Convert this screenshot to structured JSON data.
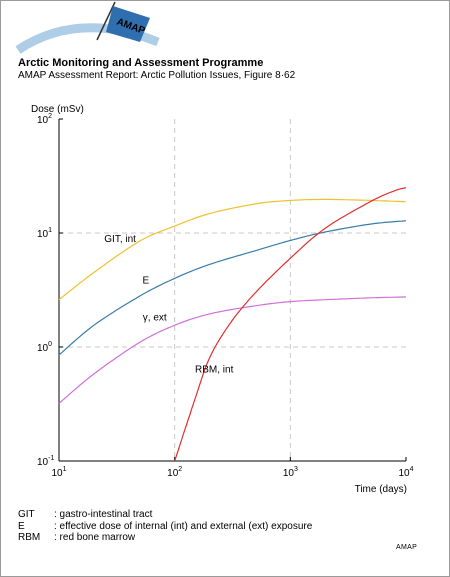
{
  "header": {
    "logo_text": "AMAP",
    "title": "Arctic Monitoring and Assessment Programme",
    "subtitle": "AMAP Assessment Report: Arctic Pollution Issues, Figure 8·62"
  },
  "chart_data": {
    "type": "line",
    "ylabel": "Dose (mSv)",
    "xlabel": "Time (days)",
    "x_scale": "log",
    "y_scale": "log",
    "xlim": [
      10,
      10000
    ],
    "ylim": [
      0.1,
      100
    ],
    "grid": "dashed at 10^2 and 10^3 (x), 10^0 and 10^1 (y)",
    "x_ticks": [
      {
        "base": "10",
        "exp": "1"
      },
      {
        "base": "10",
        "exp": "2"
      },
      {
        "base": "10",
        "exp": "3"
      },
      {
        "base": "10",
        "exp": "4"
      }
    ],
    "y_ticks": [
      {
        "base": "10",
        "exp": "-1"
      },
      {
        "base": "10",
        "exp": "0"
      },
      {
        "base": "10",
        "exp": "1"
      },
      {
        "base": "10",
        "exp": "2"
      }
    ],
    "series": [
      {
        "name": "GIT, int",
        "color": "#f0c030",
        "x": [
          10,
          20,
          50,
          100,
          200,
          500,
          1000,
          2000,
          5000,
          10000
        ],
        "y": [
          2.6,
          4.5,
          8.5,
          11.5,
          14.8,
          18.0,
          19.3,
          19.7,
          19.3,
          18.8
        ]
      },
      {
        "name": "E",
        "color": "#3a7ca8",
        "x": [
          10,
          20,
          50,
          100,
          200,
          500,
          1000,
          2000,
          5000,
          10000
        ],
        "y": [
          0.85,
          1.55,
          2.8,
          4.0,
          5.3,
          7.0,
          8.6,
          10.2,
          12.0,
          12.8
        ]
      },
      {
        "name": "γ, ext",
        "color": "#d070d8",
        "x": [
          10,
          20,
          50,
          100,
          200,
          500,
          1000,
          2000,
          5000,
          10000
        ],
        "y": [
          0.32,
          0.58,
          1.1,
          1.55,
          1.95,
          2.3,
          2.5,
          2.6,
          2.7,
          2.75
        ]
      },
      {
        "name": "RBM, int",
        "color": "#e03030",
        "x": [
          100,
          150,
          200,
          300,
          500,
          1000,
          2000,
          5000,
          8000,
          10000
        ],
        "y": [
          0.1,
          0.35,
          0.8,
          1.6,
          3.0,
          6.0,
          11.0,
          19.0,
          23.5,
          25.0
        ]
      }
    ],
    "series_label_positions": "GIT near x=20; E near x=40; gamma near x=50; RBM near x=150"
  },
  "legend": [
    {
      "abbr": "GIT",
      "desc": ": gastro-intestinal tract"
    },
    {
      "abbr": "E",
      "desc": ": effective dose of internal (int) and external (ext) exposure"
    },
    {
      "abbr": "RBM",
      "desc": ": red bone marrow"
    }
  ],
  "credit": "AMAP"
}
